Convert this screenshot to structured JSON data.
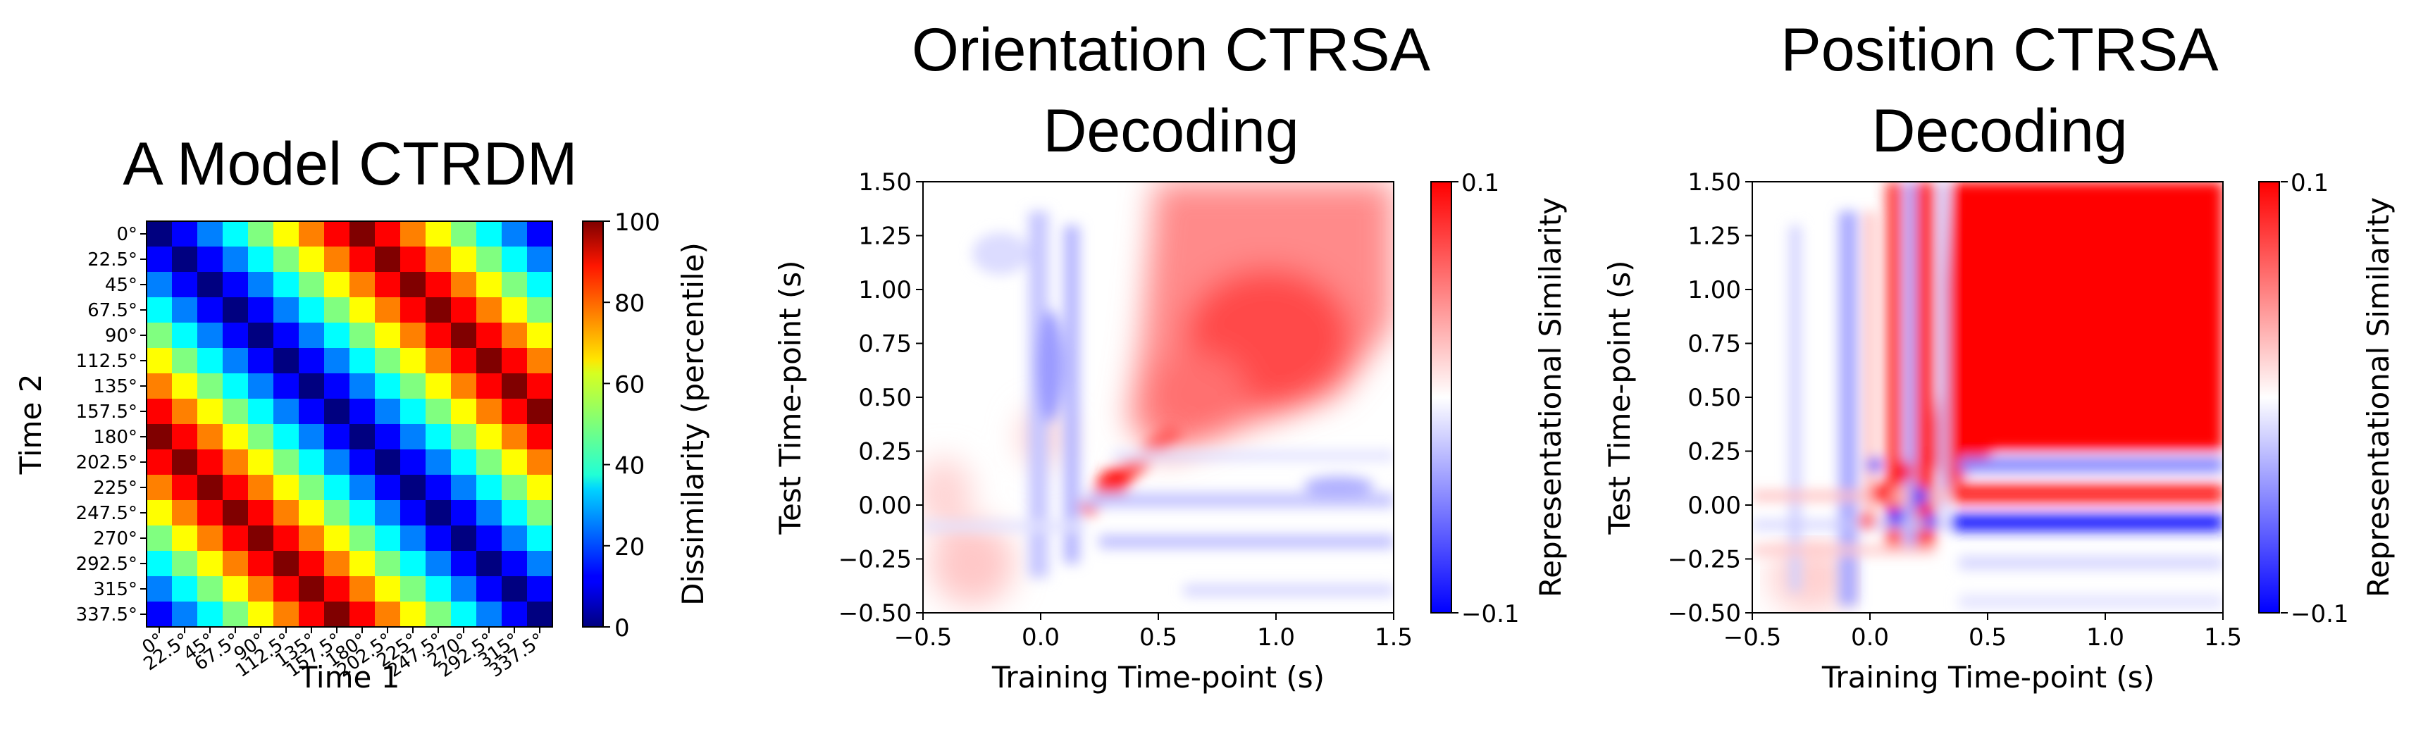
{
  "chart_data": [
    {
      "type": "heatmap",
      "title": "A Model CTRDM",
      "xlabel": "Time 1",
      "ylabel": "Time 2",
      "categories": [
        "0°",
        "22.5°",
        "45°",
        "67.5°",
        "90°",
        "112.5°",
        "135°",
        "157.5°",
        "180°",
        "202.5°",
        "225°",
        "247.5°",
        "270°",
        "292.5°",
        "315°",
        "337.5°"
      ],
      "value_rule": "circular orientation distance between row and column orientations, percentile scaled",
      "colorbar": {
        "label": "Dissimilarity (percentile)",
        "ticks": [
          "0",
          "20",
          "40",
          "60",
          "80",
          "100"
        ],
        "range": [
          0,
          100
        ],
        "colormap": "jet"
      }
    },
    {
      "type": "heatmap",
      "title": [
        "Orientation CTRSA",
        "Decoding"
      ],
      "xlabel": "Training Time-point (s)",
      "ylabel": "Test Time-point (s)",
      "xlim": [
        -0.5,
        1.5
      ],
      "ylim": [
        -0.5,
        1.5
      ],
      "xticks": [
        "−0.5",
        "0.0",
        "0.5",
        "1.0",
        "1.5"
      ],
      "yticks": [
        "−0.50",
        "−0.25",
        "0.00",
        "0.25",
        "0.50",
        "0.75",
        "1.00",
        "1.25",
        "1.50"
      ],
      "colorbar": {
        "label": "Representational Similarity",
        "ticks": [
          "0.1",
          "−0.1"
        ],
        "range": [
          -0.1,
          0.1
        ],
        "colormap": "bwr"
      }
    },
    {
      "type": "heatmap",
      "title": [
        "Position CTRSA",
        "Decoding"
      ],
      "xlabel": "Training Time-point (s)",
      "ylabel": "Test Time-point (s)",
      "xlim": [
        -0.5,
        1.5
      ],
      "ylim": [
        -0.5,
        1.5
      ],
      "xticks": [
        "−0.5",
        "0.0",
        "0.5",
        "1.0",
        "1.5"
      ],
      "yticks": [
        "−0.50",
        "−0.25",
        "0.00",
        "0.25",
        "0.50",
        "0.75",
        "1.00",
        "1.25",
        "1.50"
      ],
      "colorbar": {
        "label": "Representational Similarity",
        "ticks": [
          "0.1",
          "−0.1"
        ],
        "range": [
          -0.1,
          0.1
        ],
        "colormap": "bwr"
      }
    }
  ]
}
